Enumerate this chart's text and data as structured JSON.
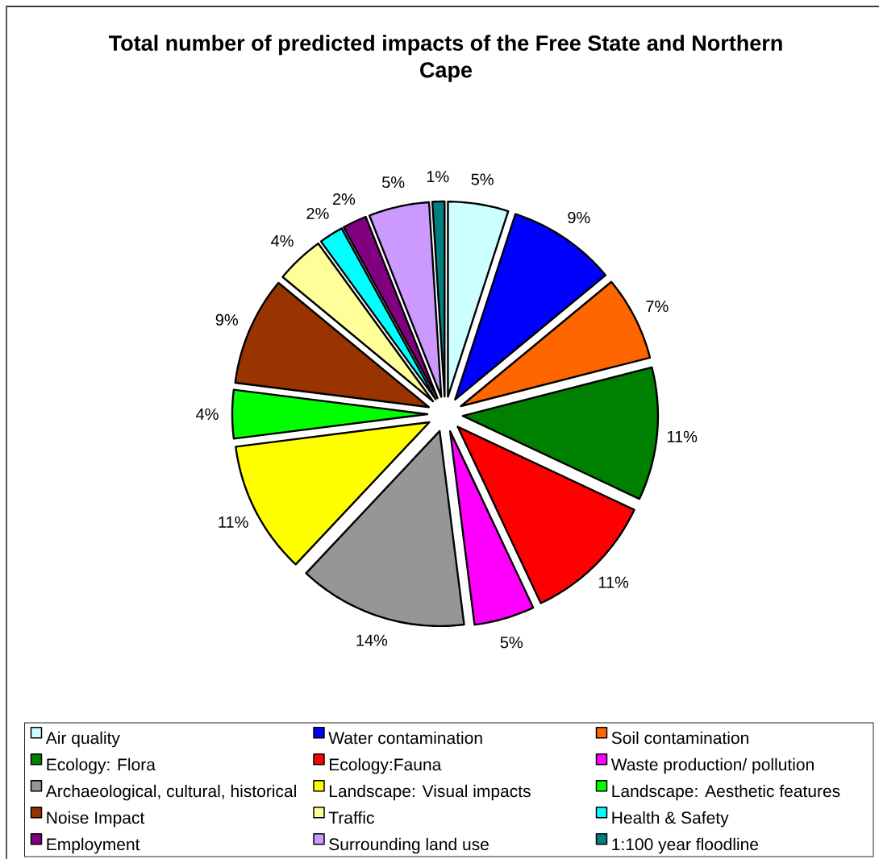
{
  "chart_data": {
    "type": "pie",
    "title": "Total number of predicted impacts of the Free State and Northern Cape",
    "categories": [
      "Air quality",
      "Water contamination",
      "Soil contamination",
      "Ecology: Flora",
      "Ecology:Fauna",
      "Waste production/ pollution",
      "Archaeological, cultural, historical",
      "Landscape: Visual impacts",
      "Landscape: Aesthetic features",
      "Noise Impact",
      "Traffic",
      "Health & Safety",
      "Employment",
      "Surrounding land use",
      "1:100 year floodline"
    ],
    "values": [
      5,
      9,
      7,
      11,
      11,
      5,
      14,
      11,
      4,
      9,
      4,
      2,
      2,
      5,
      1
    ],
    "value_labels": [
      "5%",
      "9%",
      "7%",
      "11%",
      "11%",
      "5%",
      "14%",
      "11%",
      "4%",
      "9%",
      "4%",
      "2%",
      "2%",
      "5%",
      "1%"
    ],
    "colors": [
      "#ccffff",
      "#0000ff",
      "#ff6600",
      "#008000",
      "#ff0000",
      "#ff00ff",
      "#969696",
      "#ffff00",
      "#00ff00",
      "#993300",
      "#ffff99",
      "#00ffff",
      "#800080",
      "#cc99ff",
      "#008080"
    ],
    "legend": "bottom"
  }
}
